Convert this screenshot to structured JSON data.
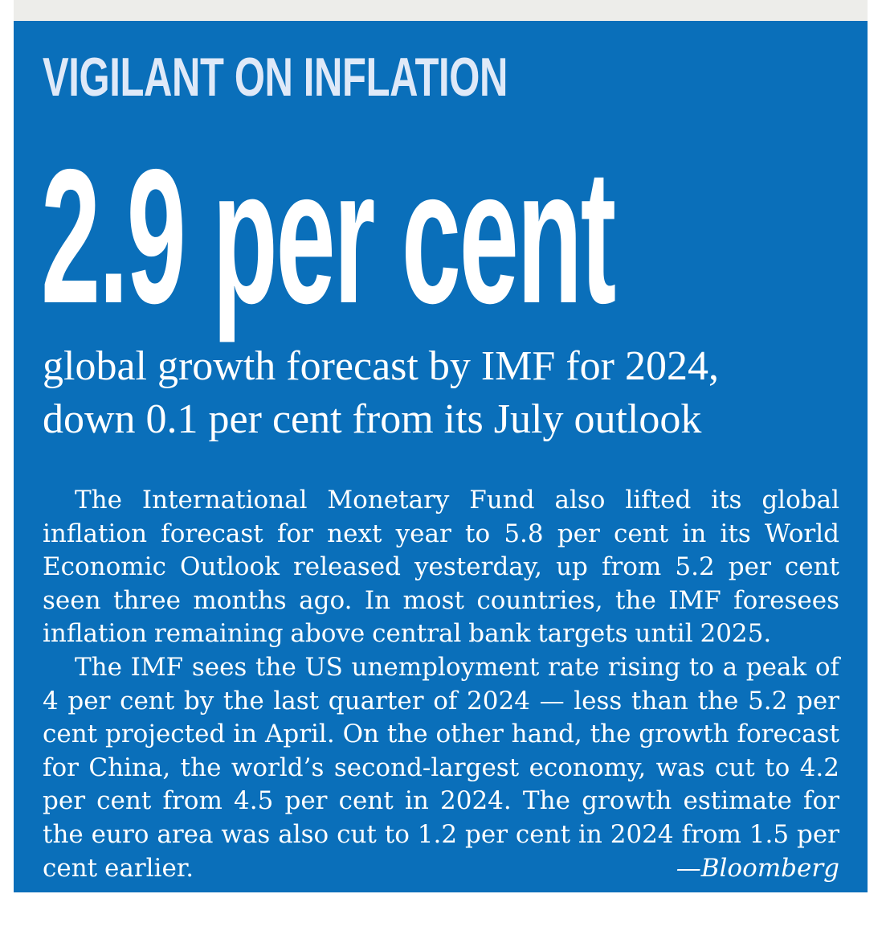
{
  "kicker": "VIGILANT ON INFLATION",
  "headline_number": "2.9 per cent",
  "subhead_line1": "global growth forecast by IMF for 2024,",
  "subhead_line2": "down 0.1 per cent from its July outlook",
  "paragraph1": "The International Monetary Fund also lifted its global inflation forecast for next year to 5.8 per cent in its World Economic Outlook released yesterday, up from 5.2 per cent seen three months ago. In most countries, the IMF foresees inflation remaining above central bank targets until 2025.",
  "paragraph2": "The IMF sees the US unemployment rate rising to a peak of 4 per cent by the last quarter of 2024 — less than the 5.2 per cent projected in April. On the other hand, the growth forecast for China, the world’s second-largest economy, was cut to 4.2 per cent from 4.5 per cent in 2024. The growth estimate for the euro area was also cut to 1.2 per cent in 2024 from 1.5 per cent earlier.",
  "credit": "—Bloomberg",
  "colors": {
    "panel_background": "#0a6fba",
    "kicker_text": "#dfe9f8",
    "text": "#ffffff"
  }
}
